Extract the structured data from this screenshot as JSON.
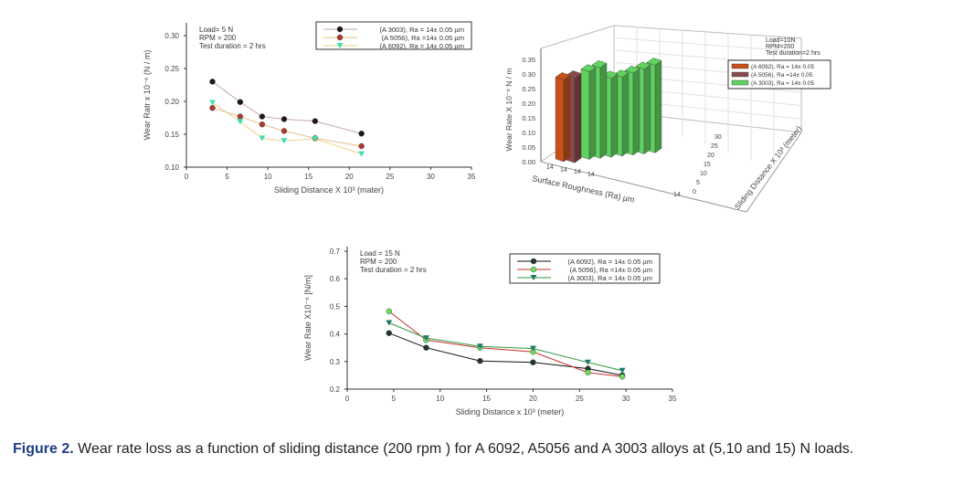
{
  "chart_data": [
    {
      "type": "line",
      "xlabel": "Sliding Distance X 10³ (mater)",
      "ylabel": "Wear Ratr x 10⁻⁶ (N / m)",
      "xlim": [
        0,
        35
      ],
      "ylim": [
        0.1,
        0.3
      ],
      "xticks": [
        "0",
        "5",
        "10",
        "15",
        "20",
        "25",
        "30",
        "35"
      ],
      "yticks": [
        "0.10",
        "0.15",
        "0.20",
        "0.25",
        "0.30"
      ],
      "annotation": [
        "Load= 5 N",
        "RPM = 200",
        "Test duration = 2 hrs"
      ],
      "legend_position": "top-right",
      "series": [
        {
          "name": "(A 3003), Ra  = 14± 0.05  µm",
          "color": "#1a1a1a",
          "line": "#c9a6a6",
          "marker": "circle",
          "x": [
            3.2,
            6.6,
            9.3,
            12,
            15.8,
            21.5
          ],
          "y": [
            0.23,
            0.199,
            0.177,
            0.173,
            0.17,
            0.151
          ]
        },
        {
          "name": "(A 5056), Ra  =14± 0.05  µm",
          "color": "#b03a2e",
          "line": "#e8b88a",
          "marker": "circle",
          "x": [
            3.2,
            6.6,
            9.3,
            12,
            15.8,
            21.5
          ],
          "y": [
            0.19,
            0.177,
            0.165,
            0.155,
            0.144,
            0.132
          ]
        },
        {
          "name": "(A 6092), Ra  = 14± 0.05  µm",
          "color": "#3de0b0",
          "line": "#f2d08a",
          "marker": "triangle-down",
          "x": [
            3.2,
            6.6,
            9.3,
            12,
            15.8,
            21.5
          ],
          "y": [
            0.198,
            0.169,
            0.144,
            0.14,
            0.143,
            0.12
          ]
        }
      ]
    },
    {
      "type": "bar",
      "subtype": "3d",
      "xlabel": "Surface Roughness (Ra) µm",
      "ylabel": "Wear Rate X 10⁻⁶  N / m",
      "zlabel": "Sliding Distance X 10³  (meter)",
      "ylim": [
        0,
        0.35
      ],
      "yticks": [
        "0.00",
        "0.05",
        "0.10",
        "0.15",
        "0.20",
        "0.25",
        "0.30",
        "0.35"
      ],
      "xticks": [
        "14",
        "14",
        "14",
        "14",
        "14"
      ],
      "zticks": [
        "0",
        "5",
        "10",
        "15",
        "20",
        "25",
        "30"
      ],
      "annotation": [
        "Load=10N",
        "RPM=200",
        "Test duration=2 hrs"
      ],
      "legend_position": "right",
      "series": [
        {
          "name": "(A 6092), Ra  = 14± 0.05",
          "color": "#c8501a",
          "values": [
            0.28
          ]
        },
        {
          "name": "(A 5056), Ra  =14± 0.05",
          "color": "#8a4a4a",
          "values": [
            0.29
          ]
        },
        {
          "name": "(A 3003), Ra  = 14± 0.05",
          "color": "#5fd35f",
          "values": [
            0.3,
            0.31,
            0.27,
            0.27,
            0.28,
            0.29,
            0.3
          ]
        }
      ]
    },
    {
      "type": "line",
      "xlabel": "Sliding Distance x 10³  (meter)",
      "ylabel": "Wear Rate X10⁻⁶ [N/m]",
      "xlim": [
        0,
        35
      ],
      "ylim": [
        0.2,
        0.7
      ],
      "xticks": [
        "0",
        "5",
        "10",
        "15",
        "20",
        "25",
        "30",
        "35"
      ],
      "yticks": [
        "0.2",
        "0.3",
        "0.4",
        "0.5",
        "0.6",
        "0.7"
      ],
      "annotation": [
        "Load = 15 N",
        "RPM = 200",
        "Test duration = 2 hrs"
      ],
      "legend_position": "top-right",
      "series": [
        {
          "name": "(A 6092), Ra  = 14± 0.05  µm",
          "color": "#1f3a2a",
          "line": "#111111",
          "marker": "circle",
          "x": [
            4.5,
            8.5,
            14.3,
            20,
            25.9,
            29.6
          ],
          "y": [
            0.403,
            0.35,
            0.302,
            0.297,
            0.274,
            0.25
          ]
        },
        {
          "name": "(A 5056), Ra  =14± 0.05  µm",
          "color": "#6fdc5a",
          "line": "#c83030",
          "marker": "circle",
          "x": [
            4.5,
            8.5,
            14.3,
            20,
            25.9,
            29.6
          ],
          "y": [
            0.482,
            0.378,
            0.35,
            0.335,
            0.26,
            0.245
          ]
        },
        {
          "name": "(A 3003), Ra  = 14± 0.05  µm",
          "color": "#1e7a6a",
          "line": "#2e9a3a",
          "marker": "triangle-down",
          "x": [
            4.5,
            8.5,
            14.3,
            20,
            25.9,
            29.6
          ],
          "y": [
            0.44,
            0.385,
            0.355,
            0.347,
            0.297,
            0.267
          ]
        }
      ]
    }
  ],
  "caption": {
    "label": "Figure 2.",
    "text": " Wear rate loss as a function of sliding distance (200 rpm ) for A 6092, A5056 and A 3003 alloys at (5,10 and 15) N loads."
  }
}
